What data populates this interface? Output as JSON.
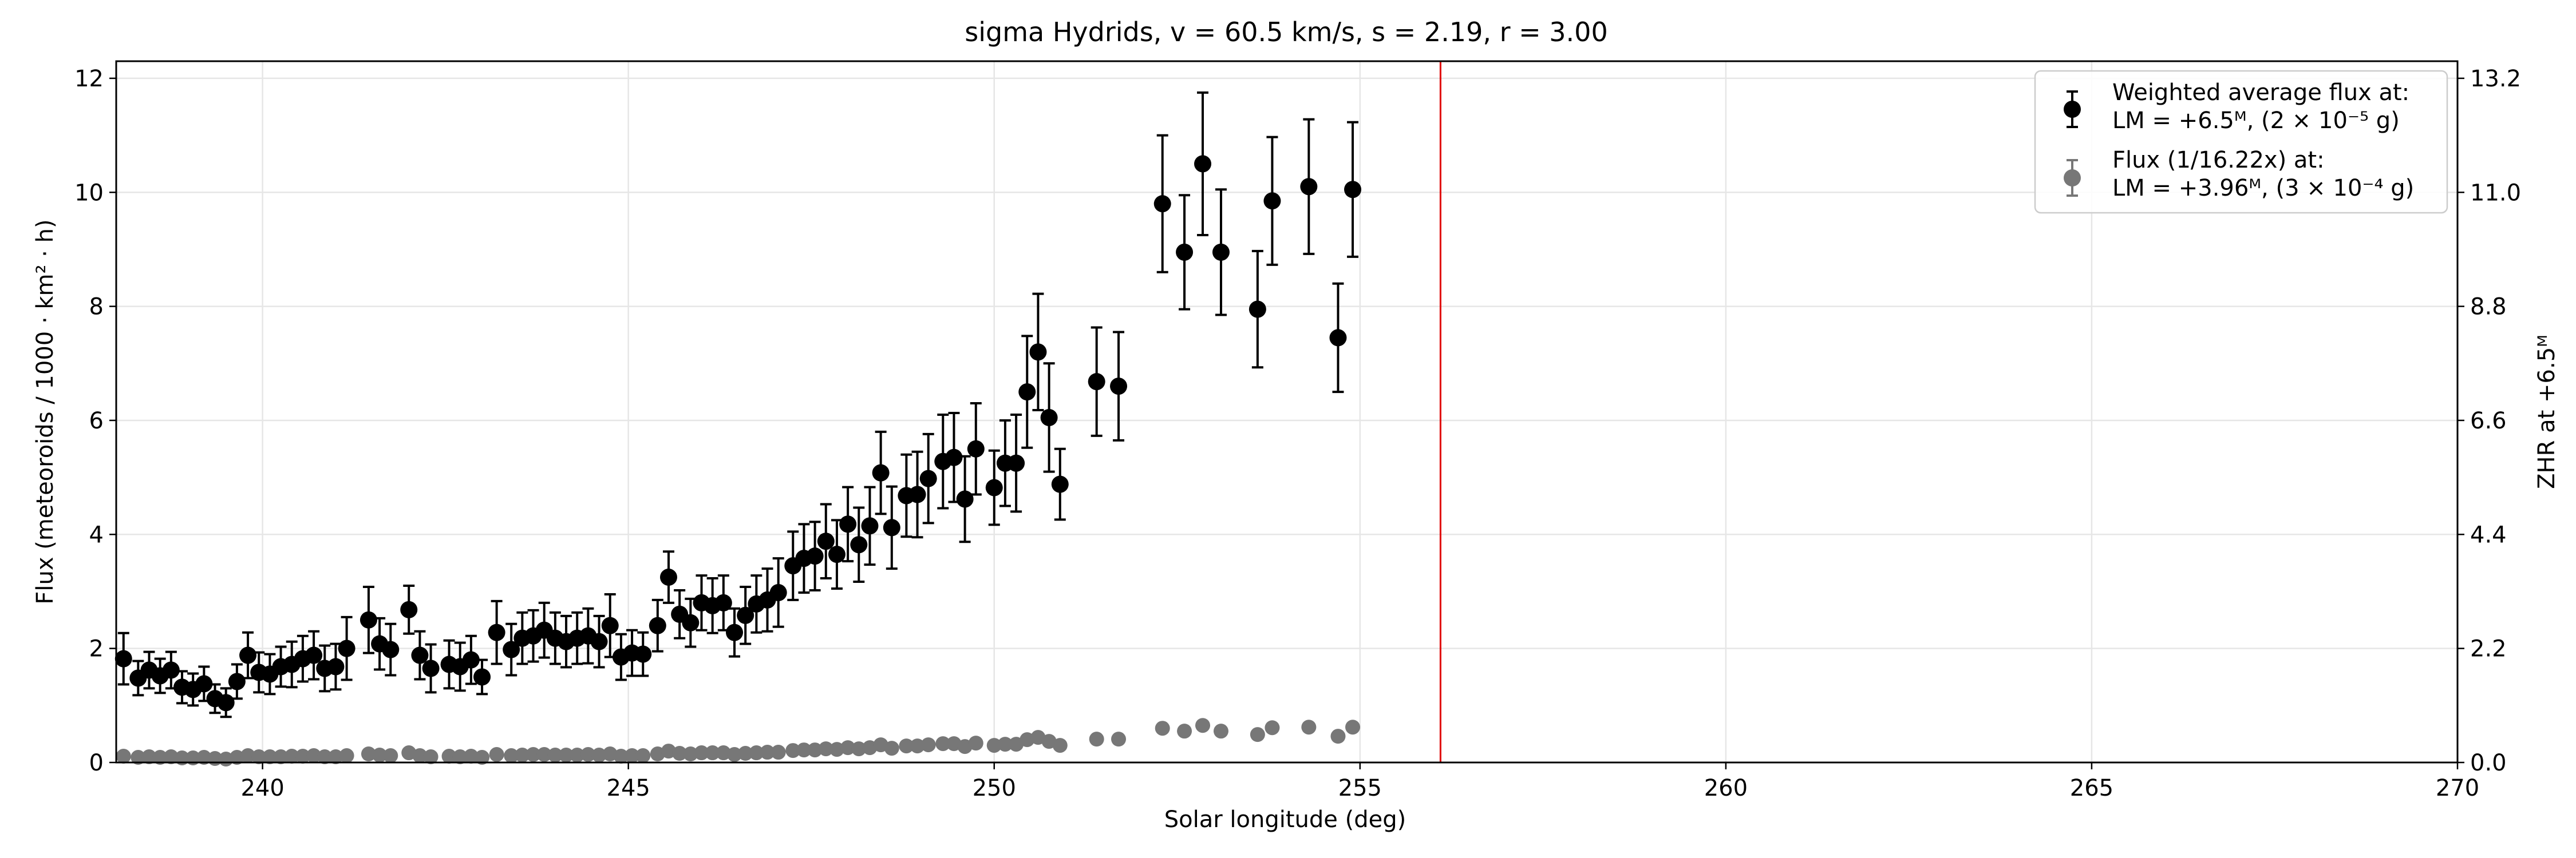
{
  "chart_data": {
    "type": "scatter",
    "title": "sigma Hydrids, v = 60.5 km/s, s = 2.19, r = 3.00",
    "xlabel": "Solar longitude (deg)",
    "ylabel": "Flux (meteoroids / 1000 · km² · h)",
    "y2label": "ZHR at +6.5ᴹ",
    "xlim": [
      238,
      270
    ],
    "ylim": [
      0,
      12.3
    ],
    "xticks": [
      240,
      245,
      250,
      255,
      260,
      265,
      270
    ],
    "yticks": [
      0,
      2,
      4,
      6,
      8,
      10,
      12
    ],
    "y2ticks": [
      0.0,
      2.2,
      4.4,
      6.6,
      8.8,
      11.0,
      13.2
    ],
    "y2_per_y": 1.1,
    "grid": true,
    "legend_position": "top-right",
    "vline": {
      "x": 256.1,
      "color": "#e00000"
    },
    "series": [
      {
        "name": "weighted",
        "legend_line1": "Weighted average flux at:",
        "legend_line2": "LM = +6.5ᴹ, (2 × 10⁻⁵ g)",
        "color": "#000000",
        "points": [
          [
            238.1,
            1.82,
            0.45
          ],
          [
            238.3,
            1.48,
            0.3
          ],
          [
            238.45,
            1.62,
            0.32
          ],
          [
            238.6,
            1.52,
            0.3
          ],
          [
            238.75,
            1.62,
            0.32
          ],
          [
            238.9,
            1.32,
            0.28
          ],
          [
            239.05,
            1.28,
            0.28
          ],
          [
            239.2,
            1.38,
            0.3
          ],
          [
            239.35,
            1.12,
            0.25
          ],
          [
            239.5,
            1.05,
            0.25
          ],
          [
            239.65,
            1.42,
            0.3
          ],
          [
            239.8,
            1.88,
            0.4
          ],
          [
            239.95,
            1.58,
            0.35
          ],
          [
            240.1,
            1.55,
            0.35
          ],
          [
            240.25,
            1.68,
            0.35
          ],
          [
            240.4,
            1.72,
            0.4
          ],
          [
            240.55,
            1.82,
            0.4
          ],
          [
            240.7,
            1.88,
            0.42
          ],
          [
            240.85,
            1.65,
            0.4
          ],
          [
            241.0,
            1.68,
            0.4
          ],
          [
            241.15,
            2.0,
            0.55
          ],
          [
            241.45,
            2.5,
            0.58
          ],
          [
            241.6,
            2.08,
            0.45
          ],
          [
            241.75,
            1.98,
            0.45
          ],
          [
            242.0,
            2.68,
            0.42
          ],
          [
            242.15,
            1.88,
            0.42
          ],
          [
            242.3,
            1.65,
            0.42
          ],
          [
            242.55,
            1.72,
            0.42
          ],
          [
            242.7,
            1.68,
            0.42
          ],
          [
            242.85,
            1.8,
            0.42
          ],
          [
            243.0,
            1.5,
            0.3
          ],
          [
            243.2,
            2.28,
            0.55
          ],
          [
            243.4,
            1.98,
            0.45
          ],
          [
            243.55,
            2.18,
            0.45
          ],
          [
            243.7,
            2.22,
            0.45
          ],
          [
            243.85,
            2.32,
            0.48
          ],
          [
            244.0,
            2.18,
            0.45
          ],
          [
            244.15,
            2.12,
            0.45
          ],
          [
            244.3,
            2.18,
            0.45
          ],
          [
            244.45,
            2.22,
            0.48
          ],
          [
            244.6,
            2.12,
            0.45
          ],
          [
            244.75,
            2.4,
            0.55
          ],
          [
            244.9,
            1.85,
            0.4
          ],
          [
            245.05,
            1.92,
            0.4
          ],
          [
            245.2,
            1.9,
            0.38
          ],
          [
            245.4,
            2.4,
            0.45
          ],
          [
            245.55,
            3.25,
            0.45
          ],
          [
            245.7,
            2.6,
            0.42
          ],
          [
            245.85,
            2.45,
            0.42
          ],
          [
            246.0,
            2.8,
            0.48
          ],
          [
            246.15,
            2.75,
            0.48
          ],
          [
            246.3,
            2.8,
            0.48
          ],
          [
            246.45,
            2.28,
            0.42
          ],
          [
            246.6,
            2.58,
            0.5
          ],
          [
            246.75,
            2.78,
            0.5
          ],
          [
            246.9,
            2.85,
            0.55
          ],
          [
            247.05,
            2.98,
            0.6
          ],
          [
            247.25,
            3.45,
            0.6
          ],
          [
            247.4,
            3.58,
            0.6
          ],
          [
            247.55,
            3.62,
            0.6
          ],
          [
            247.7,
            3.88,
            0.65
          ],
          [
            247.85,
            3.65,
            0.6
          ],
          [
            248.0,
            4.18,
            0.65
          ],
          [
            248.15,
            3.82,
            0.65
          ],
          [
            248.3,
            4.15,
            0.68
          ],
          [
            248.45,
            5.08,
            0.72
          ],
          [
            248.6,
            4.12,
            0.72
          ],
          [
            248.8,
            4.68,
            0.72
          ],
          [
            248.95,
            4.7,
            0.75
          ],
          [
            249.1,
            4.98,
            0.78
          ],
          [
            249.3,
            5.28,
            0.82
          ],
          [
            249.45,
            5.35,
            0.78
          ],
          [
            249.6,
            4.62,
            0.75
          ],
          [
            249.75,
            5.5,
            0.8
          ],
          [
            250.0,
            4.82,
            0.65
          ],
          [
            250.15,
            5.25,
            0.75
          ],
          [
            250.3,
            5.25,
            0.85
          ],
          [
            250.45,
            6.5,
            0.98
          ],
          [
            250.6,
            7.2,
            1.02
          ],
          [
            250.75,
            6.05,
            0.95
          ],
          [
            250.9,
            4.88,
            0.62
          ],
          [
            251.4,
            6.68,
            0.95
          ],
          [
            251.7,
            6.6,
            0.95
          ],
          [
            252.3,
            9.8,
            1.2
          ],
          [
            252.6,
            8.95,
            1.0
          ],
          [
            252.85,
            10.5,
            1.25
          ],
          [
            253.1,
            8.95,
            1.1
          ],
          [
            253.6,
            7.95,
            1.02
          ],
          [
            253.8,
            9.85,
            1.12
          ],
          [
            254.3,
            10.1,
            1.18
          ],
          [
            254.7,
            7.45,
            0.95
          ],
          [
            254.9,
            10.05,
            1.18
          ]
        ]
      },
      {
        "name": "scaled",
        "legend_line1": "Flux (1/16.22x) at:",
        "legend_line2": "LM = +3.96ᴹ, (3 × 10⁻⁴ g)",
        "color": "#777777",
        "points": [
          [
            238.1,
            0.11
          ],
          [
            238.3,
            0.09
          ],
          [
            238.45,
            0.1
          ],
          [
            238.6,
            0.09
          ],
          [
            238.75,
            0.1
          ],
          [
            238.9,
            0.08
          ],
          [
            239.05,
            0.08
          ],
          [
            239.2,
            0.09
          ],
          [
            239.35,
            0.07
          ],
          [
            239.5,
            0.06
          ],
          [
            239.65,
            0.09
          ],
          [
            239.8,
            0.12
          ],
          [
            239.95,
            0.1
          ],
          [
            240.1,
            0.1
          ],
          [
            240.25,
            0.1
          ],
          [
            240.4,
            0.11
          ],
          [
            240.55,
            0.11
          ],
          [
            240.7,
            0.12
          ],
          [
            240.85,
            0.1
          ],
          [
            241.0,
            0.1
          ],
          [
            241.15,
            0.12
          ],
          [
            241.45,
            0.15
          ],
          [
            241.6,
            0.13
          ],
          [
            241.75,
            0.12
          ],
          [
            242.0,
            0.17
          ],
          [
            242.15,
            0.12
          ],
          [
            242.3,
            0.1
          ],
          [
            242.55,
            0.11
          ],
          [
            242.7,
            0.1
          ],
          [
            242.85,
            0.11
          ],
          [
            243.0,
            0.09
          ],
          [
            243.2,
            0.14
          ],
          [
            243.4,
            0.12
          ],
          [
            243.55,
            0.13
          ],
          [
            243.7,
            0.14
          ],
          [
            243.85,
            0.14
          ],
          [
            244.0,
            0.13
          ],
          [
            244.15,
            0.13
          ],
          [
            244.3,
            0.13
          ],
          [
            244.45,
            0.14
          ],
          [
            244.6,
            0.13
          ],
          [
            244.75,
            0.15
          ],
          [
            244.9,
            0.11
          ],
          [
            245.05,
            0.12
          ],
          [
            245.2,
            0.12
          ],
          [
            245.4,
            0.15
          ],
          [
            245.55,
            0.2
          ],
          [
            245.7,
            0.16
          ],
          [
            245.85,
            0.15
          ],
          [
            246.0,
            0.17
          ],
          [
            246.15,
            0.17
          ],
          [
            246.3,
            0.17
          ],
          [
            246.45,
            0.14
          ],
          [
            246.6,
            0.16
          ],
          [
            246.75,
            0.17
          ],
          [
            246.9,
            0.18
          ],
          [
            247.05,
            0.18
          ],
          [
            247.25,
            0.21
          ],
          [
            247.4,
            0.22
          ],
          [
            247.55,
            0.22
          ],
          [
            247.7,
            0.24
          ],
          [
            247.85,
            0.23
          ],
          [
            248.0,
            0.26
          ],
          [
            248.15,
            0.24
          ],
          [
            248.3,
            0.26
          ],
          [
            248.45,
            0.31
          ],
          [
            248.6,
            0.25
          ],
          [
            248.8,
            0.29
          ],
          [
            248.95,
            0.29
          ],
          [
            249.1,
            0.31
          ],
          [
            249.3,
            0.33
          ],
          [
            249.45,
            0.33
          ],
          [
            249.6,
            0.28
          ],
          [
            249.75,
            0.34
          ],
          [
            250.0,
            0.3
          ],
          [
            250.15,
            0.32
          ],
          [
            250.3,
            0.32
          ],
          [
            250.45,
            0.4
          ],
          [
            250.6,
            0.44
          ],
          [
            250.75,
            0.37
          ],
          [
            250.9,
            0.3
          ],
          [
            251.4,
            0.41
          ],
          [
            251.7,
            0.41
          ],
          [
            252.3,
            0.6
          ],
          [
            252.6,
            0.55
          ],
          [
            252.85,
            0.65
          ],
          [
            253.1,
            0.55
          ],
          [
            253.6,
            0.49
          ],
          [
            253.8,
            0.61
          ],
          [
            254.3,
            0.62
          ],
          [
            254.7,
            0.46
          ],
          [
            254.9,
            0.62
          ]
        ]
      }
    ]
  }
}
